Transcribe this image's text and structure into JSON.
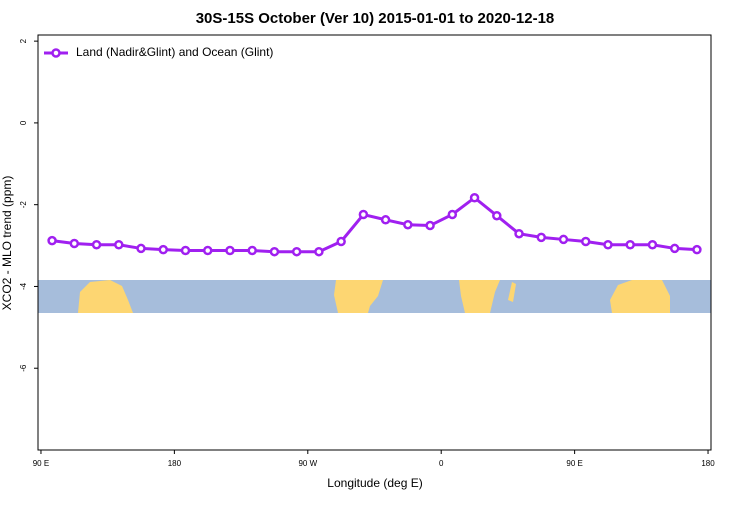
{
  "chart_data": {
    "type": "line",
    "title": "30S-15S October (Ver 10)   2015-01-01 to 2020-12-18",
    "x_label": "Longitude (deg E)",
    "y_label": "XCO2 - MLO trend (ppm)",
    "x": [
      97.5,
      112.5,
      127.5,
      142.5,
      157.5,
      172.5,
      187.5,
      202.5,
      217.5,
      232.5,
      247.5,
      262.5,
      277.5,
      292.5,
      307.5,
      322.5,
      337.5,
      352.5,
      367.5,
      382.5,
      397.5,
      412.5,
      427.5,
      442.5,
      457.5,
      472.5,
      487.5,
      502.5,
      517.5,
      532.5
    ],
    "series": [
      {
        "name": "Land (Nadir&Glint) and Ocean (Glint)",
        "color": "#a020f0",
        "values": [
          -2.88,
          -2.95,
          -2.98,
          -2.98,
          -3.07,
          -3.1,
          -3.12,
          -3.12,
          -3.12,
          -3.12,
          -3.15,
          -3.15,
          -3.15,
          -2.9,
          -2.24,
          -2.37,
          -2.49,
          -2.51,
          -2.24,
          -1.83,
          -2.27,
          -2.71,
          -2.8,
          -2.85,
          -2.9,
          -2.98,
          -2.98,
          -2.98,
          -3.07,
          -3.1
        ]
      }
    ],
    "xlim": [
      88,
      542
    ],
    "xticks": [
      {
        "value": 90,
        "label": "90 E"
      },
      180,
      {
        "value": 270,
        "label": "90 W"
      },
      {
        "value": 360,
        "label": "0"
      },
      {
        "value": 450,
        "label": "90 E"
      },
      {
        "value": 540,
        "label": "180"
      }
    ],
    "ylim": [
      -8,
      2.15
    ],
    "yticks": [
      2,
      0,
      -2,
      -4,
      -6
    ],
    "legend": "top-left"
  }
}
